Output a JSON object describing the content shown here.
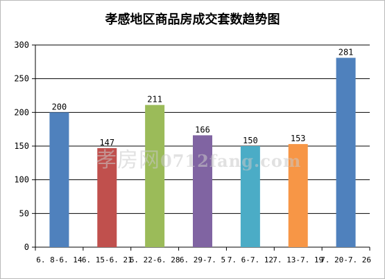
{
  "chart_data": {
    "type": "bar",
    "title": "孝感地区商品房成交套数趋势图",
    "categories": [
      "6.8-6.14",
      "6.15-6.21",
      "6.22-6.28",
      "6.29-7.5",
      "7.6-7.12",
      "7.13-7.19",
      "7.20-7.26"
    ],
    "tick_labels": [
      "6. 8-6. 14",
      "6. 15-6. 21",
      "6. 22-6. 28",
      "6. 29-7. 5",
      "7. 6-7. 12",
      "7. 13-7. 19",
      "7. 20-7. 26"
    ],
    "values": [
      200,
      147,
      211,
      166,
      150,
      153,
      281
    ],
    "colors": [
      "#4f81bd",
      "#c0504d",
      "#9bbb59",
      "#8064a2",
      "#4bacc6",
      "#f79646",
      "#4f81bd"
    ],
    "ylim": [
      0,
      300
    ],
    "yticks": [
      0,
      50,
      100,
      150,
      200,
      250,
      300
    ],
    "grid": true,
    "legend": "none"
  },
  "watermark": {
    "cn": "孝房网",
    "latin": "0712fang.com"
  }
}
